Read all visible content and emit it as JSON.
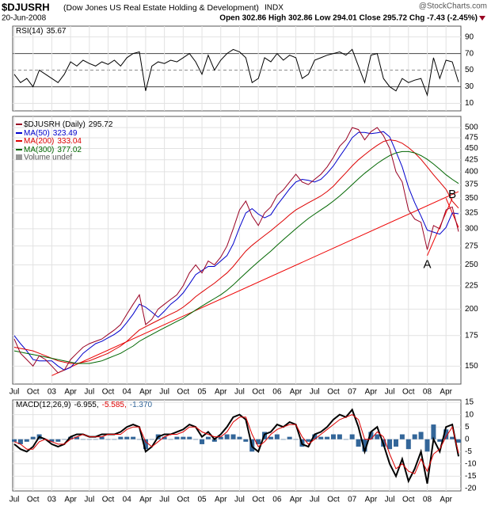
{
  "header": {
    "symbol": "$DJUSRH",
    "name": "(Dow Jones US Real Estate Holding & Development)",
    "exchange": "INDX",
    "date": "20-Jun-2008",
    "quote": "Open 302.86 High 302.86 Low 294.01 Close 295.72 Chg -7.43 (-2.45%)",
    "credit": "@StockCharts.com"
  },
  "chart_data": [
    {
      "type": "line",
      "title": "RSI(14)",
      "ylim": [
        1,
        103
      ],
      "yticks": [
        10,
        30,
        50,
        70,
        90
      ],
      "overbought": 70,
      "oversold": 30,
      "center": 50,
      "series": [
        {
          "name": "RSI(14)",
          "color": "#000000",
          "values": [
            45,
            35,
            40,
            30,
            50,
            45,
            40,
            35,
            45,
            60,
            55,
            62,
            58,
            55,
            60,
            57,
            62,
            55,
            65,
            70,
            72,
            25,
            55,
            60,
            58,
            62,
            60,
            65,
            70,
            60,
            45,
            68,
            50,
            62,
            70,
            75,
            72,
            65,
            35,
            40,
            65,
            60,
            70,
            62,
            68,
            65,
            40,
            45,
            62,
            65,
            68,
            70,
            72,
            68,
            75,
            55,
            35,
            68,
            70,
            40,
            30,
            25,
            40,
            35,
            38,
            40,
            20,
            65,
            40,
            62,
            60,
            35.67
          ]
        }
      ]
    },
    {
      "type": "line",
      "log_scale": true,
      "grid": true,
      "ylim": [
        137,
        529
      ],
      "yticks": [
        150,
        175,
        200,
        225,
        250,
        275,
        300,
        325,
        350,
        375,
        400,
        425,
        450,
        475,
        500
      ],
      "xlim": [
        "2002-07",
        "2008-06"
      ],
      "x": [
        "2002-07",
        "2002-08",
        "2002-09",
        "2002-10",
        "2002-11",
        "2002-12",
        "2003-01",
        "2003-02",
        "2003-03",
        "2003-04",
        "2003-05",
        "2003-06",
        "2003-07",
        "2003-08",
        "2003-09",
        "2003-10",
        "2003-11",
        "2003-12",
        "2004-01",
        "2004-02",
        "2004-03",
        "2004-04",
        "2004-05",
        "2004-06",
        "2004-07",
        "2004-08",
        "2004-09",
        "2004-10",
        "2004-11",
        "2004-12",
        "2005-01",
        "2005-02",
        "2005-03",
        "2005-04",
        "2005-05",
        "2005-06",
        "2005-07",
        "2005-08",
        "2005-09",
        "2005-10",
        "2005-11",
        "2005-12",
        "2006-01",
        "2006-02",
        "2006-03",
        "2006-04",
        "2006-05",
        "2006-06",
        "2006-07",
        "2006-08",
        "2006-09",
        "2006-10",
        "2006-11",
        "2006-12",
        "2007-01",
        "2007-02",
        "2007-03",
        "2007-04",
        "2007-05",
        "2007-06",
        "2007-07",
        "2007-08",
        "2007-09",
        "2007-10",
        "2007-11",
        "2007-12",
        "2008-01",
        "2008-02",
        "2008-03",
        "2008-04",
        "2008-05",
        "2008-06"
      ],
      "xticks": [
        {
          "value": "2002-07",
          "label": "Jul"
        },
        {
          "value": "2002-10",
          "label": "Oct"
        },
        {
          "value": "2003-01",
          "label": "03"
        },
        {
          "value": "2003-04",
          "label": "Apr"
        },
        {
          "value": "2003-07",
          "label": "Jul"
        },
        {
          "value": "2003-10",
          "label": "Oct"
        },
        {
          "value": "2004-01",
          "label": "04"
        },
        {
          "value": "2004-04",
          "label": "Apr"
        },
        {
          "value": "2004-07",
          "label": "Jul"
        },
        {
          "value": "2004-10",
          "label": "Oct"
        },
        {
          "value": "2005-01",
          "label": "05"
        },
        {
          "value": "2005-04",
          "label": "Apr"
        },
        {
          "value": "2005-07",
          "label": "Jul"
        },
        {
          "value": "2005-10",
          "label": "Oct"
        },
        {
          "value": "2006-01",
          "label": "06"
        },
        {
          "value": "2006-04",
          "label": "Apr"
        },
        {
          "value": "2006-07",
          "label": "Jul"
        },
        {
          "value": "2006-10",
          "label": "Oct"
        },
        {
          "value": "2007-01",
          "label": "07"
        },
        {
          "value": "2007-04",
          "label": "Apr"
        },
        {
          "value": "2007-07",
          "label": "Jul"
        },
        {
          "value": "2007-10",
          "label": "Oct"
        },
        {
          "value": "2008-01",
          "label": "08"
        },
        {
          "value": "2008-04",
          "label": "Apr"
        }
      ],
      "series": [
        {
          "name": "$DJUSRH (Daily)",
          "color": "#990022",
          "values": [
            172,
            160,
            155,
            150,
            158,
            155,
            150,
            145,
            147,
            155,
            160,
            165,
            168,
            170,
            172,
            176,
            180,
            185,
            195,
            205,
            215,
            185,
            190,
            200,
            205,
            210,
            215,
            225,
            240,
            250,
            240,
            255,
            250,
            260,
            275,
            300,
            330,
            345,
            320,
            305,
            325,
            335,
            355,
            365,
            380,
            395,
            380,
            375,
            385,
            395,
            410,
            430,
            455,
            470,
            500,
            495,
            470,
            490,
            500,
            480,
            450,
            400,
            380,
            330,
            315,
            310,
            270,
            305,
            300,
            330,
            335,
            295.72
          ]
        },
        {
          "name": "MA(50)",
          "color": "#0000cc",
          "values": [
            175,
            168,
            162,
            155,
            154,
            154,
            154,
            150,
            147,
            149,
            154,
            160,
            164,
            168,
            170,
            173,
            176,
            180,
            187,
            195,
            205,
            202,
            197,
            192,
            198,
            205,
            210,
            217,
            227,
            238,
            243,
            248,
            248,
            255,
            262,
            278,
            302,
            325,
            332,
            323,
            317,
            322,
            338,
            352,
            367,
            380,
            385,
            383,
            380,
            385,
            397,
            412,
            432,
            452,
            475,
            488,
            488,
            485,
            487,
            490,
            477,
            443,
            410,
            370,
            342,
            320,
            298,
            295,
            292,
            302,
            325,
            323.49
          ]
        },
        {
          "name": "MA(200)",
          "color": "#dd0000",
          "values": [
            165,
            164,
            163,
            162,
            160,
            158,
            156,
            154,
            153,
            152,
            152,
            153,
            154,
            156,
            158,
            160,
            163,
            166,
            170,
            175,
            180,
            183,
            186,
            189,
            192,
            195,
            198,
            202,
            207,
            213,
            218,
            223,
            228,
            234,
            240,
            248,
            258,
            268,
            276,
            283,
            290,
            297,
            305,
            313,
            322,
            330,
            336,
            342,
            348,
            354,
            362,
            372,
            385,
            398,
            412,
            425,
            436,
            447,
            457,
            466,
            470,
            468,
            462,
            452,
            440,
            426,
            410,
            394,
            380,
            366,
            345,
            333.04
          ]
        },
        {
          "name": "MA(300)",
          "color": "#006600",
          "values": [
            162,
            161,
            160,
            159,
            158,
            157,
            156,
            155,
            154,
            153,
            152,
            152,
            152,
            153,
            154,
            156,
            158,
            160,
            163,
            166,
            170,
            173,
            176,
            179,
            182,
            185,
            188,
            191,
            195,
            199,
            203,
            207,
            211,
            215,
            220,
            226,
            233,
            240,
            247,
            254,
            261,
            268,
            276,
            284,
            292,
            300,
            308,
            316,
            323,
            330,
            337,
            345,
            354,
            364,
            375,
            386,
            397,
            407,
            417,
            426,
            434,
            440,
            443,
            443,
            440,
            434,
            426,
            416,
            405,
            394,
            385,
            377.02
          ]
        }
      ],
      "volume_label": "Volume undef",
      "trendlines": [
        {
          "color": "#ee0000",
          "x": [
            "2003-01",
            "2008-06"
          ],
          "values": [
            143,
            362
          ]
        },
        {
          "color": "#ee0000",
          "x": [
            "2008-01",
            "2008-05"
          ],
          "values": [
            262,
            350
          ]
        },
        {
          "color": "#ee0000",
          "x": [
            "2008-04",
            "2008-06"
          ],
          "values": [
            350,
            302
          ]
        }
      ],
      "annotations": [
        {
          "text": "A",
          "x": "2008-01",
          "value": 250
        },
        {
          "text": "B",
          "x": "2008-05",
          "value": 356
        }
      ]
    },
    {
      "type": "line",
      "title": "MACD(12,26,9)",
      "separator": ",",
      "ylim": [
        -21,
        16
      ],
      "yticks": [
        -20,
        -15,
        -10,
        -5,
        0,
        5,
        10,
        15
      ],
      "series": [
        {
          "color": "#000000",
          "kind": "line",
          "width": 2,
          "values": [
            -2,
            -4,
            -5,
            -3,
            1,
            0,
            -2,
            -3,
            -2,
            1,
            2,
            2,
            1,
            1,
            2,
            2,
            2,
            3,
            5,
            6,
            5,
            -5,
            -3,
            1,
            2,
            2,
            3,
            4,
            6,
            5,
            1,
            3,
            0,
            2,
            5,
            9,
            10,
            8,
            -3,
            -5,
            2,
            3,
            6,
            5,
            7,
            6,
            -2,
            -3,
            2,
            3,
            5,
            8,
            10,
            9,
            12,
            5,
            -5,
            3,
            5,
            -2,
            -10,
            -15,
            -8,
            -17,
            -12,
            -5,
            -18,
            0,
            -5,
            5,
            6,
            -6.955
          ]
        },
        {
          "color": "#dd0000",
          "kind": "line",
          "width": 1,
          "values": [
            -1,
            -2,
            -4,
            -4,
            -1,
            0,
            -1,
            -2,
            -2,
            0,
            1,
            2,
            1,
            1,
            1,
            2,
            2,
            2,
            4,
            5,
            5,
            -1,
            -3,
            -1,
            1,
            2,
            2,
            3,
            5,
            5,
            3,
            2,
            1,
            1,
            3,
            7,
            9,
            9,
            2,
            -3,
            -1,
            2,
            4,
            5,
            6,
            6,
            1,
            -2,
            0,
            2,
            4,
            6,
            8,
            9,
            10,
            8,
            0,
            0,
            3,
            1,
            -6,
            -12,
            -10,
            -13,
            -14,
            -8,
            -13,
            -6,
            -4,
            1,
            5,
            -5.585
          ]
        },
        {
          "color": "#336699",
          "kind": "bar",
          "values": [
            -1,
            -2,
            -1,
            1,
            2,
            0,
            -1,
            -1,
            0,
            1,
            1,
            0,
            0,
            0,
            1,
            0,
            0,
            1,
            1,
            1,
            0,
            -4,
            0,
            2,
            1,
            0,
            1,
            1,
            1,
            0,
            -2,
            1,
            -1,
            1,
            2,
            2,
            1,
            -1,
            -5,
            -2,
            3,
            1,
            2,
            0,
            1,
            0,
            -3,
            -1,
            2,
            1,
            1,
            2,
            2,
            0,
            2,
            -3,
            -5,
            3,
            2,
            -3,
            -4,
            -3,
            2,
            -4,
            2,
            3,
            -5,
            6,
            -1,
            4,
            1,
            -1.37
          ],
          "value_labels": [
            null,
            null,
            null,
            null,
            null,
            null,
            null,
            null,
            null,
            null,
            null,
            null,
            null,
            null,
            null,
            null,
            null,
            null,
            null,
            null,
            null,
            null,
            null,
            null,
            null,
            null,
            null,
            null,
            null,
            null,
            null,
            null,
            null,
            null,
            null,
            null,
            null,
            null,
            null,
            null,
            null,
            null,
            null,
            null,
            null,
            null,
            null,
            null,
            null,
            null,
            null,
            null,
            null,
            null,
            null,
            null,
            null,
            null,
            null,
            null,
            null,
            null,
            null,
            null,
            null,
            null,
            null,
            null,
            null,
            null,
            null,
            "-1.370"
          ]
        }
      ]
    }
  ]
}
